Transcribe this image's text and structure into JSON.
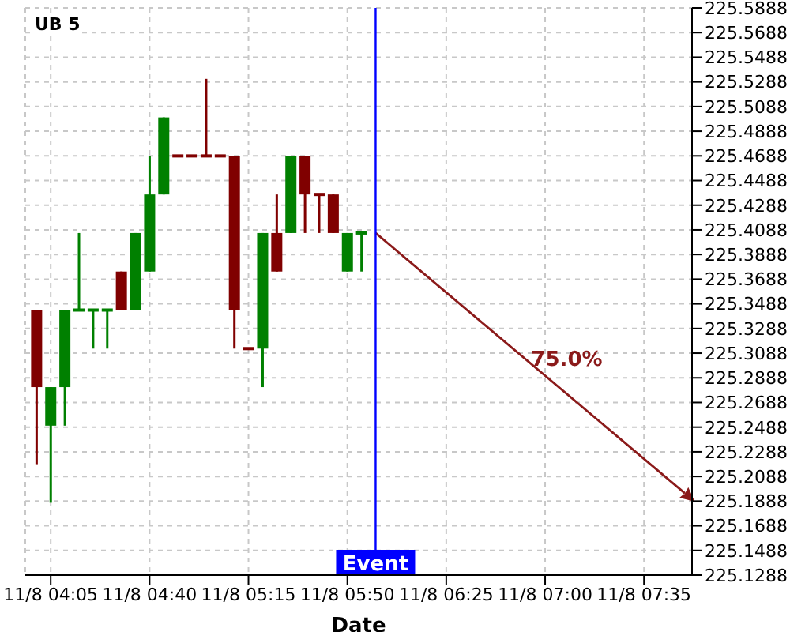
{
  "chart_data": {
    "type": "candlestick",
    "title": "UB 5",
    "xlabel": "Date",
    "x": [
      "--11-08T04:00",
      "--11-08T04:05",
      "--11-08T04:10",
      "--11-08T04:15",
      "--11-08T04:20",
      "--11-08T04:25",
      "--11-08T04:30",
      "--11-08T04:35",
      "--11-08T04:40",
      "--11-08T04:45",
      "--11-08T04:50",
      "--11-08T04:55",
      "--11-08T05:00",
      "--11-08T05:05",
      "--11-08T05:10",
      "--11-08T05:15",
      "--11-08T05:20",
      "--11-08T05:25",
      "--11-08T05:30",
      "--11-08T05:35",
      "--11-08T05:40",
      "--11-08T05:45",
      "--11-08T05:50",
      "--11-08T05:55"
    ],
    "ohlc": [
      [
        225.34375,
        225.34375,
        225.21875,
        225.28125
      ],
      [
        225.25,
        225.28125,
        225.1875,
        225.28125
      ],
      [
        225.28125,
        225.34375,
        225.25,
        225.34375
      ],
      [
        225.34375,
        225.40625,
        225.34375,
        225.34375
      ],
      [
        225.34375,
        225.34375,
        225.3125,
        225.34375
      ],
      [
        225.34375,
        225.34375,
        225.3125,
        225.34375
      ],
      [
        225.375,
        225.375,
        225.34375,
        225.34375
      ],
      [
        225.34375,
        225.40625,
        225.34375,
        225.40625
      ],
      [
        225.375,
        225.46875,
        225.375,
        225.4375
      ],
      [
        225.4375,
        225.5,
        225.4375,
        225.5
      ],
      [
        225.46875,
        225.46875,
        225.46875,
        225.46875
      ],
      [
        225.46875,
        225.46875,
        225.46875,
        225.46875
      ],
      [
        225.46875,
        225.53125,
        225.46875,
        225.46875
      ],
      [
        225.46875,
        225.46875,
        225.46875,
        225.46875
      ],
      [
        225.46875,
        225.46875,
        225.3125,
        225.34375
      ],
      [
        225.3125,
        225.3125,
        225.3125,
        225.3125
      ],
      [
        225.3125,
        225.40625,
        225.28125,
        225.40625
      ],
      [
        225.40625,
        225.4375,
        225.375,
        225.375
      ],
      [
        225.40625,
        225.46875,
        225.40625,
        225.46875
      ],
      [
        225.46875,
        225.46875,
        225.40625,
        225.4375
      ],
      [
        225.4375,
        225.4375,
        225.40625,
        225.4375
      ],
      [
        225.4375,
        225.4375,
        225.40625,
        225.40625
      ],
      [
        225.375,
        225.40625,
        225.375,
        225.40625
      ],
      [
        225.40625,
        225.40625,
        225.375,
        225.40625
      ]
    ],
    "colors": [
      "#800000",
      "#008000",
      "#008000",
      "#008000",
      "#008000",
      "#008000",
      "#800000",
      "#008000",
      "#008000",
      "#008000",
      "#800000",
      "#800000",
      "#800000",
      "#800000",
      "#800000",
      "#800000",
      "#008000",
      "#800000",
      "#008000",
      "#800000",
      "#800000",
      "#800000",
      "#008000",
      "#008000"
    ],
    "annotations": [
      "75.0%"
    ],
    "ref_lines": [
      {
        "axis": "x",
        "value": "--11-08T06:00",
        "label": "Event",
        "color": "#0000ff"
      }
    ],
    "xlim": [
      "--11-08T03:56",
      "--11-08T07:52"
    ],
    "xticks": [
      {
        "value": "--11-08T04:05",
        "label": "11/8 04:05"
      },
      {
        "value": "--11-08T04:40",
        "label": "11/8 04:40"
      },
      {
        "value": "--11-08T05:15",
        "label": "11/8 05:15"
      },
      {
        "value": "--11-08T05:50",
        "label": "11/8 05:50"
      },
      {
        "value": "--11-08T06:25",
        "label": "11/8 06:25"
      },
      {
        "value": "--11-08T07:00",
        "label": "11/8 07:00"
      },
      {
        "value": "--11-08T07:35",
        "label": "11/8 07:35"
      }
    ],
    "ylim": [
      225.1288,
      225.5888
    ],
    "yticks": [
      225.1288,
      225.1488,
      225.1688,
      225.1888,
      225.2088,
      225.2288,
      225.2488,
      225.2688,
      225.2888,
      225.3088,
      225.3288,
      225.3488,
      225.3688,
      225.3888,
      225.4088,
      225.4288,
      225.4488,
      225.4688,
      225.4888,
      225.5088,
      225.5288,
      225.5488,
      225.5688,
      225.5888
    ],
    "grid": true
  }
}
